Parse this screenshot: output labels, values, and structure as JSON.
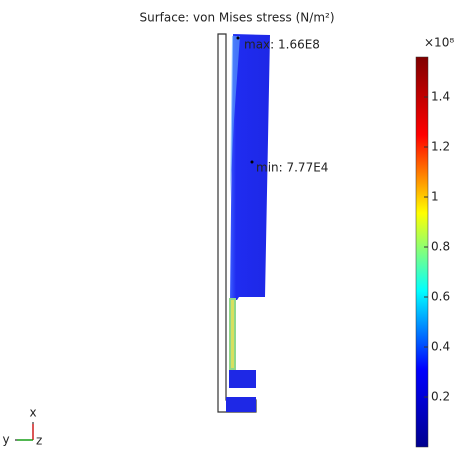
{
  "chart_data": {
    "type": "surface",
    "title": "Surface: von Mises stress (N/m²)",
    "colorbar_multiplier": "×10⁸",
    "clim": [
      0,
      1.56
    ],
    "cticks": [
      0.2,
      0.4,
      0.6,
      0.8,
      1,
      1.2,
      1.4
    ],
    "colormap": [
      "#00008f",
      "#0000ff",
      "#00ffff",
      "#ffff00",
      "#ff0000",
      "#800000"
    ],
    "annotations": [
      "max: 1.66E8",
      "min: 7.77E4"
    ],
    "annotation_color": "#ff00ff",
    "axes_triad": [
      "x",
      "y",
      "z"
    ]
  }
}
